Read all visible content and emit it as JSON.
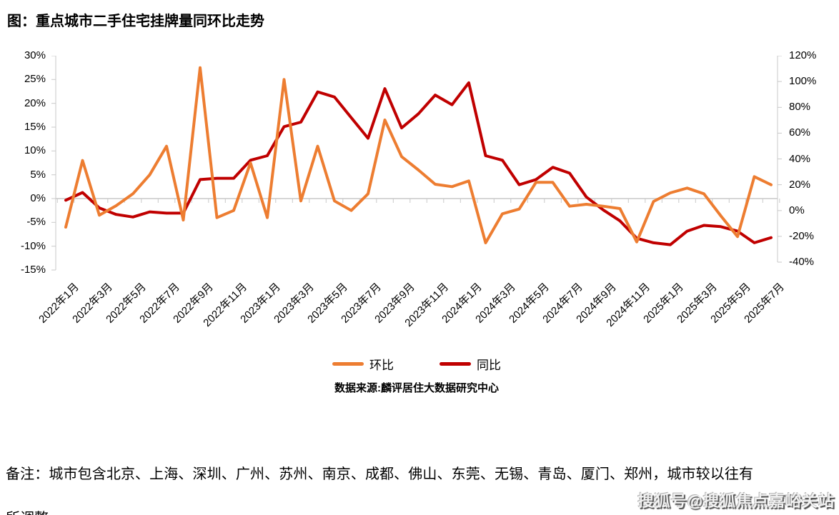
{
  "title": "图：重点城市二手住宅挂牌量同环比走势",
  "legend": {
    "items": [
      {
        "label": "环比",
        "color": "#ED7D31"
      },
      {
        "label": "同比",
        "color": "#C00000"
      }
    ]
  },
  "source": "数据来源:麟评居住大数据研究中心",
  "note": "备注：城市包含北京、上海、深圳、广州、苏州、南京、成都、佛山、东莞、无锡、青岛、厦门、郑州，城市较以往有所调整。",
  "watermark": "搜狐号@搜狐焦点嘉峪关站",
  "chart_data": {
    "type": "line",
    "title": "图：重点城市二手住宅挂牌量同环比走势",
    "categories": [
      "2022年1月",
      "2022年2月",
      "2022年3月",
      "2022年4月",
      "2022年5月",
      "2022年6月",
      "2022年7月",
      "2022年8月",
      "2022年9月",
      "2022年10月",
      "2022年11月",
      "2022年12月",
      "2023年1月",
      "2023年2月",
      "2023年3月",
      "2023年4月",
      "2023年5月",
      "2023年6月",
      "2023年7月",
      "2023年8月",
      "2023年9月",
      "2023年10月",
      "2023年11月",
      "2023年12月",
      "2024年1月",
      "2024年2月",
      "2024年3月",
      "2024年4月",
      "2024年5月",
      "2024年6月",
      "2024年7月",
      "2024年8月",
      "2024年9月",
      "2024年10月",
      "2024年11月",
      "2024年12月",
      "2025年1月",
      "2025年2月",
      "2025年3月",
      "2025年4月",
      "2025年5月",
      "2025年6月",
      "2025年7月"
    ],
    "x_tick_labels": [
      "2022年1月",
      "2022年3月",
      "2022年5月",
      "2022年7月",
      "2022年9月",
      "2022年11月",
      "2023年1月",
      "2023年3月",
      "2023年5月",
      "2023年7月",
      "2023年9月",
      "2023年11月",
      "2024年1月",
      "2024年3月",
      "2024年5月",
      "2024年7月",
      "2024年9月",
      "2024年11月",
      "2025年1月",
      "2025年3月",
      "2025年5月",
      "2025年7月"
    ],
    "series": [
      {
        "name": "环比",
        "axis": "left",
        "color": "#ED7D31",
        "values": [
          -6,
          8,
          -3.5,
          -1.5,
          1,
          5,
          11,
          -4.5,
          27.5,
          -4,
          -2.5,
          7.5,
          -4,
          25,
          -0.5,
          11,
          -0.5,
          -2.5,
          1,
          16.5,
          8.8,
          6,
          3,
          2.5,
          3.7,
          -9.3,
          -3.2,
          -2.2,
          3.4,
          3.4,
          -1.6,
          -1.2,
          -1.6,
          -2.1,
          -9.1,
          -0.6,
          1.2,
          2.2,
          1,
          -3.6,
          -8,
          4.6,
          2.9
        ]
      },
      {
        "name": "同比",
        "axis": "right",
        "color": "#C00000",
        "values": [
          8,
          14,
          2,
          -3,
          -5,
          -1,
          -2,
          -2,
          24,
          25,
          25,
          39,
          42.5,
          65,
          68.5,
          92,
          88,
          72,
          56,
          94.5,
          64,
          75,
          89.5,
          82,
          99,
          42.5,
          39,
          20,
          24,
          33.5,
          29,
          10.5,
          0.5,
          -8,
          -21.5,
          -25,
          -26.5,
          -16,
          -11.5,
          -12.5,
          -16,
          -25,
          -21
        ]
      }
    ],
    "axes": {
      "left": {
        "ticks": [
          "30%",
          "25%",
          "20%",
          "15%",
          "10%",
          "5%",
          "0%",
          "-5%",
          "-10%",
          "-15%"
        ],
        "min": -15,
        "max": 30
      },
      "right": {
        "ticks": [
          "120%",
          "100%",
          "80%",
          "60%",
          "40%",
          "20%",
          "0%",
          "-20%",
          "-40%"
        ],
        "min": -40,
        "max": 120
      }
    },
    "grid": "zero-line-only",
    "legend_position": "bottom-center"
  }
}
